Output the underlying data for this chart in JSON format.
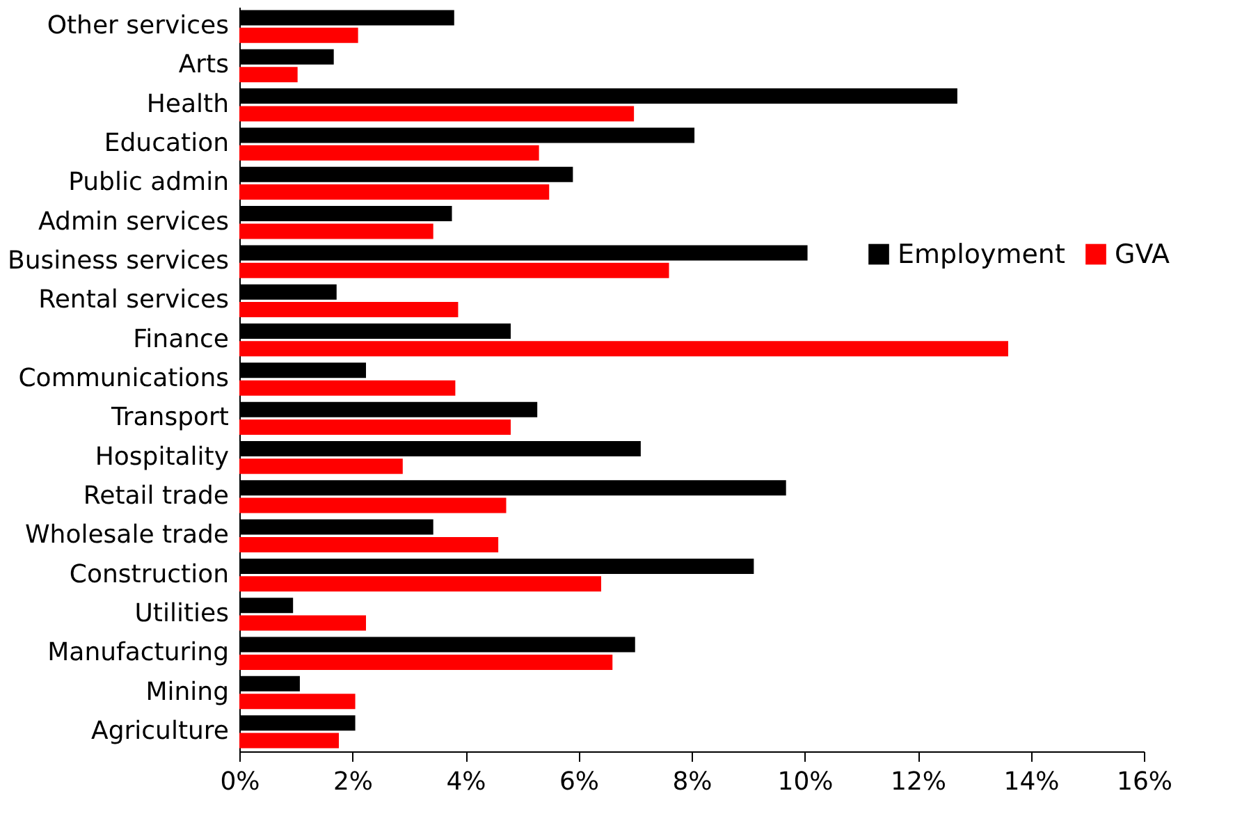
{
  "chart_data": {
    "type": "bar",
    "orientation": "horizontal",
    "categories": [
      "Other services",
      "Arts",
      "Health",
      "Education",
      "Public admin",
      "Admin services",
      "Business services",
      "Rental services",
      "Finance",
      "Communications",
      "Transport",
      "Hospitality",
      "Retail trade",
      "Wholesale trade",
      "Construction",
      "Utilities",
      "Manufacturing",
      "Mining",
      "Agriculture"
    ],
    "series": [
      {
        "name": "Employment",
        "color": "#000000",
        "values": [
          3.8,
          1.67,
          12.7,
          8.05,
          5.9,
          3.76,
          10.05,
          1.72,
          4.8,
          2.24,
          5.27,
          7.1,
          9.67,
          3.43,
          9.1,
          0.95,
          7.0,
          1.07,
          2.05
        ]
      },
      {
        "name": "GVA",
        "color": "#ff0000",
        "values": [
          2.1,
          1.03,
          6.98,
          5.3,
          5.48,
          3.43,
          7.6,
          3.87,
          13.6,
          3.82,
          4.8,
          2.89,
          4.72,
          4.58,
          6.4,
          2.24,
          6.6,
          2.05,
          1.76
        ]
      }
    ],
    "xlim": [
      0,
      16
    ],
    "xticks": [
      {
        "value": 0,
        "label": "0%"
      },
      {
        "value": 2,
        "label": "2%"
      },
      {
        "value": 4,
        "label": "4%"
      },
      {
        "value": 6,
        "label": "6%"
      },
      {
        "value": 8,
        "label": "8%"
      },
      {
        "value": 10,
        "label": "10%"
      },
      {
        "value": 12,
        "label": "12%"
      },
      {
        "value": 14,
        "label": "14%"
      },
      {
        "value": 16,
        "label": "16%"
      }
    ],
    "grid": false,
    "legend": "right"
  }
}
